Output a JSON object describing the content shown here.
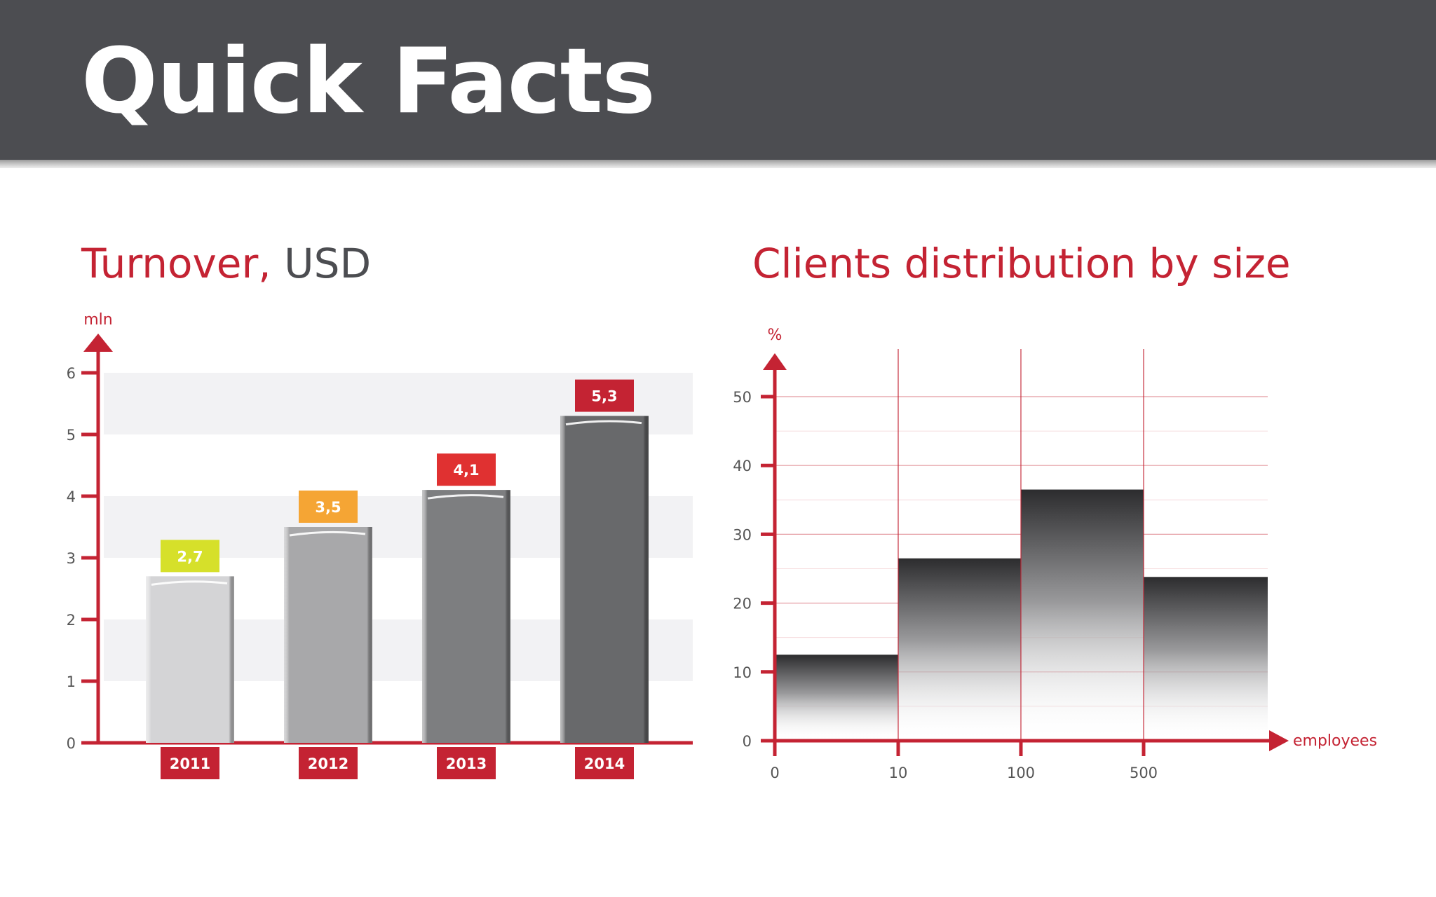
{
  "page": {
    "title": "Quick Facts"
  },
  "colors": {
    "header_bg": "#4c4d51",
    "accent_red": "#c42333",
    "label_red": "#e03131",
    "label_orange": "#f5a534",
    "label_lime": "#d6e02a"
  },
  "charts": {
    "turnover": {
      "title_accent": "Turnover,",
      "title_rest": " USD"
    },
    "clients": {
      "title": "Clients distribution by size"
    }
  },
  "chart_data": [
    {
      "type": "bar",
      "title": "Turnover, USD",
      "ylabel": "mln",
      "xlabel": "",
      "categories": [
        "2011",
        "2012",
        "2013",
        "2014"
      ],
      "values": [
        2.7,
        3.5,
        4.1,
        5.3
      ],
      "value_labels": [
        "2,7",
        "3,5",
        "4,1",
        "5,3"
      ],
      "value_label_colors": [
        "#d6e02a",
        "#f5a534",
        "#e03131",
        "#c42333"
      ],
      "bar_colors": [
        "#d4d4d6",
        "#a8a8aa",
        "#7d7e80",
        "#68696b"
      ],
      "ylim": [
        0,
        6
      ],
      "yticks": [
        "0",
        "1",
        "2",
        "3",
        "4",
        "5",
        "6"
      ],
      "grid": "alternating bands"
    },
    {
      "type": "bar",
      "title": "Clients distribution by size",
      "ylabel": "%",
      "xlabel": "employees",
      "x_ticks": [
        "0",
        "10",
        "100",
        "500"
      ],
      "bins": [
        {
          "from": "0",
          "to": "10",
          "value": 12.5
        },
        {
          "from": "10",
          "to": "100",
          "value": 26.5
        },
        {
          "from": "100",
          "to": "500",
          "value": 36.5
        },
        {
          "from": "500",
          "to": "",
          "value": 23.8
        }
      ],
      "ylim": [
        0,
        50
      ],
      "yticks": [
        "0",
        "10",
        "20",
        "30",
        "40",
        "50"
      ],
      "grid": true
    }
  ]
}
